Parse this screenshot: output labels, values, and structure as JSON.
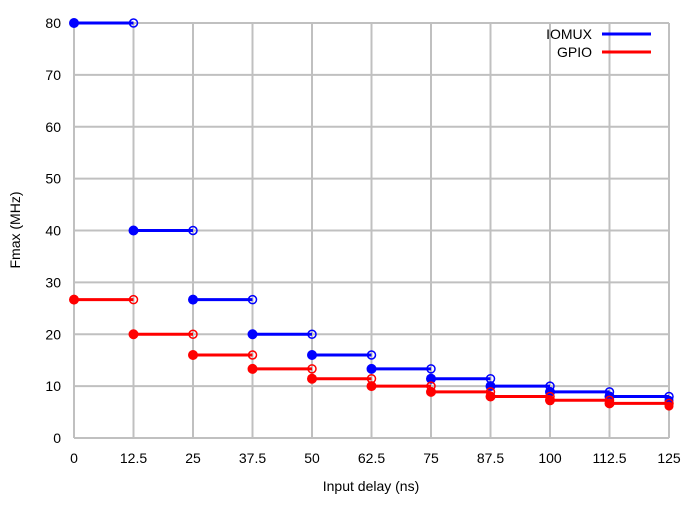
{
  "chart_data": {
    "type": "line",
    "style": "step with filled start points and open end points",
    "xlabel": "Input delay (ns)",
    "ylabel": "Fmax (MHz)",
    "xlim": [
      0,
      125
    ],
    "ylim": [
      0,
      80
    ],
    "xticks": [
      "0",
      "12.5",
      "25",
      "37.5",
      "50",
      "62.5",
      "75",
      "87.5",
      "100",
      "112.5",
      "125"
    ],
    "yticks": [
      "0",
      "10",
      "20",
      "30",
      "40",
      "50",
      "60",
      "70",
      "80"
    ],
    "grid": true,
    "legend": "top-right",
    "series": [
      {
        "name": "IOMUX",
        "color": "#0000ff",
        "steps": [
          [
            0,
            12.5,
            80
          ],
          [
            12.5,
            25,
            40
          ],
          [
            25,
            37.5,
            26.67
          ],
          [
            37.5,
            50,
            20
          ],
          [
            50,
            62.5,
            16
          ],
          [
            62.5,
            75,
            13.33
          ],
          [
            75,
            87.5,
            11.43
          ],
          [
            87.5,
            100,
            10
          ],
          [
            100,
            112.5,
            8.89
          ],
          [
            112.5,
            125,
            8
          ]
        ],
        "next_point": [
          125,
          7.27
        ]
      },
      {
        "name": "GPIO",
        "color": "#ff0000",
        "steps": [
          [
            0,
            12.5,
            26.67
          ],
          [
            12.5,
            25,
            20
          ],
          [
            25,
            37.5,
            16
          ],
          [
            37.5,
            50,
            13.33
          ],
          [
            50,
            62.5,
            11.43
          ],
          [
            62.5,
            75,
            10
          ],
          [
            75,
            87.5,
            8.89
          ],
          [
            87.5,
            100,
            8
          ],
          [
            100,
            112.5,
            7.27
          ],
          [
            112.5,
            125,
            6.67
          ]
        ],
        "next_point": [
          125,
          6.15
        ]
      }
    ]
  }
}
